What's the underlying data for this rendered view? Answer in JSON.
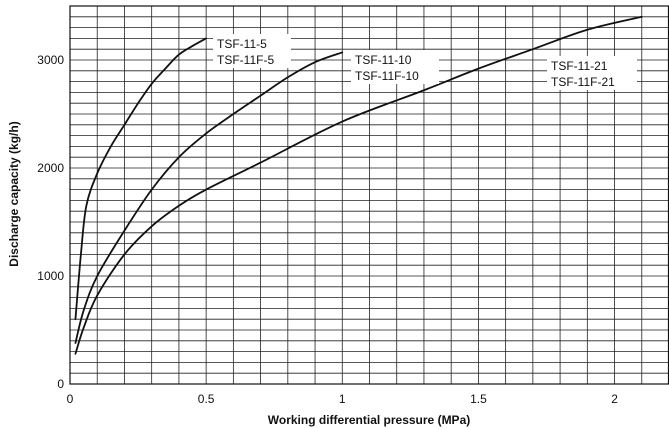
{
  "chart_data": {
    "type": "line",
    "title": "",
    "xlabel": "Working differential pressure (MPa)",
    "ylabel": "Discharge capacity (kg/h)",
    "xlim": [
      0,
      2.2
    ],
    "ylim": [
      0,
      3500
    ],
    "x_ticks": [
      {
        "value": 0,
        "label": "0"
      },
      {
        "value": 0.5,
        "label": "0.5"
      },
      {
        "value": 1,
        "label": "1"
      },
      {
        "value": 1.5,
        "label": "1.5"
      },
      {
        "value": 2,
        "label": "2"
      }
    ],
    "y_ticks": [
      {
        "value": 0,
        "label": "0"
      },
      {
        "value": 1000,
        "label": "1000"
      },
      {
        "value": 2000,
        "label": "2000"
      },
      {
        "value": 3000,
        "label": "3000"
      }
    ],
    "x_grid_step": 0.1,
    "y_grid_step": 100,
    "grid": true,
    "series": [
      {
        "label_lines": [
          "TSF-11-5",
          "TSF-11F-5"
        ],
        "color": "#111111",
        "points": [
          [
            0.02,
            600
          ],
          [
            0.04,
            1200
          ],
          [
            0.06,
            1650
          ],
          [
            0.1,
            1950
          ],
          [
            0.15,
            2200
          ],
          [
            0.2,
            2400
          ],
          [
            0.25,
            2600
          ],
          [
            0.3,
            2780
          ],
          [
            0.35,
            2920
          ],
          [
            0.4,
            3050
          ],
          [
            0.45,
            3130
          ],
          [
            0.5,
            3200
          ]
        ]
      },
      {
        "label_lines": [
          "TSF-11-10",
          "TSF-11F-10"
        ],
        "color": "#111111",
        "points": [
          [
            0.02,
            380
          ],
          [
            0.05,
            680
          ],
          [
            0.1,
            1000
          ],
          [
            0.2,
            1420
          ],
          [
            0.3,
            1800
          ],
          [
            0.4,
            2100
          ],
          [
            0.5,
            2320
          ],
          [
            0.6,
            2500
          ],
          [
            0.7,
            2670
          ],
          [
            0.8,
            2840
          ],
          [
            0.9,
            2980
          ],
          [
            1.0,
            3070
          ]
        ]
      },
      {
        "label_lines": [
          "TSF-11-21",
          "TSF-11F-21"
        ],
        "color": "#111111",
        "points": [
          [
            0.02,
            280
          ],
          [
            0.05,
            520
          ],
          [
            0.1,
            820
          ],
          [
            0.2,
            1200
          ],
          [
            0.3,
            1460
          ],
          [
            0.4,
            1650
          ],
          [
            0.5,
            1800
          ],
          [
            0.7,
            2050
          ],
          [
            1.0,
            2430
          ],
          [
            1.3,
            2720
          ],
          [
            1.5,
            2920
          ],
          [
            1.7,
            3100
          ],
          [
            1.9,
            3280
          ],
          [
            2.1,
            3400
          ]
        ]
      }
    ]
  }
}
